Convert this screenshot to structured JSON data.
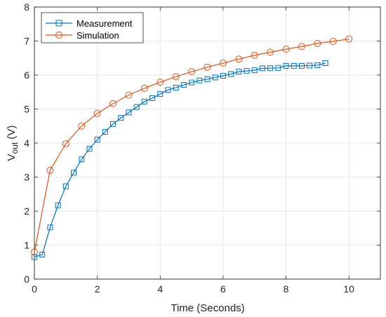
{
  "chart_data": {
    "type": "line",
    "title": "",
    "xlabel": "Time (Seconds)",
    "ylabel": {
      "main": "V",
      "subscript": "out",
      "unit": " (V)"
    },
    "xlim": [
      0,
      11
    ],
    "ylim": [
      0,
      8
    ],
    "xticks": [
      0,
      2,
      4,
      6,
      8,
      10
    ],
    "yticks": [
      0,
      1,
      2,
      3,
      4,
      5,
      6,
      7,
      8
    ],
    "grid": true,
    "legend_position": "top-left",
    "series": [
      {
        "name": "Measurement",
        "color": "#0072BD",
        "marker": "square",
        "x": [
          0,
          0.25,
          0.5,
          0.75,
          1,
          1.25,
          1.5,
          1.75,
          2,
          2.25,
          2.5,
          2.75,
          3,
          3.25,
          3.5,
          3.75,
          4,
          4.25,
          4.5,
          4.75,
          5,
          5.25,
          5.5,
          5.75,
          6,
          6.25,
          6.5,
          6.75,
          7,
          7.25,
          7.5,
          7.75,
          8,
          8.25,
          8.5,
          8.75,
          9,
          9.25
        ],
        "y": [
          0.65,
          0.72,
          1.52,
          2.17,
          2.73,
          3.13,
          3.52,
          3.83,
          4.1,
          4.33,
          4.56,
          4.74,
          4.9,
          5.06,
          5.22,
          5.32,
          5.44,
          5.56,
          5.63,
          5.71,
          5.78,
          5.84,
          5.88,
          5.93,
          5.98,
          6.03,
          6.1,
          6.12,
          6.14,
          6.2,
          6.2,
          6.21,
          6.27,
          6.27,
          6.27,
          6.28,
          6.29,
          6.35
        ]
      },
      {
        "name": "Simulation",
        "color": "#D95319",
        "marker": "circle",
        "x": [
          0,
          0.5,
          1,
          1.5,
          2,
          2.5,
          3,
          3.5,
          4,
          4.5,
          5,
          5.5,
          6,
          6.5,
          7,
          7.5,
          8,
          8.5,
          9,
          9.5,
          10
        ],
        "y": [
          0.8,
          3.2,
          3.98,
          4.5,
          4.87,
          5.16,
          5.41,
          5.61,
          5.79,
          5.95,
          6.1,
          6.23,
          6.35,
          6.47,
          6.58,
          6.67,
          6.76,
          6.84,
          6.93,
          6.99,
          7.06
        ]
      }
    ]
  }
}
